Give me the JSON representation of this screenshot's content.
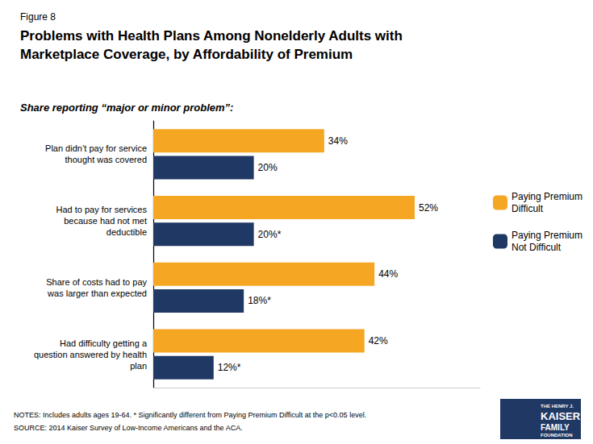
{
  "chart_data": {
    "type": "bar",
    "orientation": "horizontal",
    "figure_label": "Figure 8",
    "title": "Problems with Health Plans Among Nonelderly Adults with\nMarketplace Coverage, by Affordability of Premium",
    "subtitle": "Share reporting “major or minor problem”:",
    "categories": [
      "Had difficulty getting a\nquestion answered by health\nplan",
      "Share of costs had to pay\nwas larger than expected",
      "Had to pay for services\nbecause had not met\ndeductible",
      "Plan didn’t pay for service\nthought was covered"
    ],
    "series": [
      {
        "name": "Paying Premium\nDifficult",
        "color": "#F5A623",
        "values": [
          42,
          44,
          52,
          34
        ],
        "value_labels": [
          "42%",
          "44%",
          "52%",
          "34%"
        ]
      },
      {
        "name": "Paying Premium\nNot Difficult",
        "color": "#1F3864",
        "values": [
          12,
          18,
          20,
          20
        ],
        "value_labels": [
          "12%*",
          "18%*",
          "20%*",
          "20%"
        ]
      }
    ],
    "xlim": [
      0,
      65
    ],
    "data_labels": true,
    "tick_labels": "y",
    "grid": false,
    "legend": "right",
    "notes": [
      "NOTES: Includes adults ages 19-64. * Significantly different from Paying Premium Difficult at the p<0.05 level.",
      "SOURCE: 2014 Kaiser Survey of Low-Income Americans and the ACA."
    ],
    "logo": [
      "THE HENRY J.",
      "KAISER",
      "FAMILY",
      "FOUNDATION"
    ]
  }
}
